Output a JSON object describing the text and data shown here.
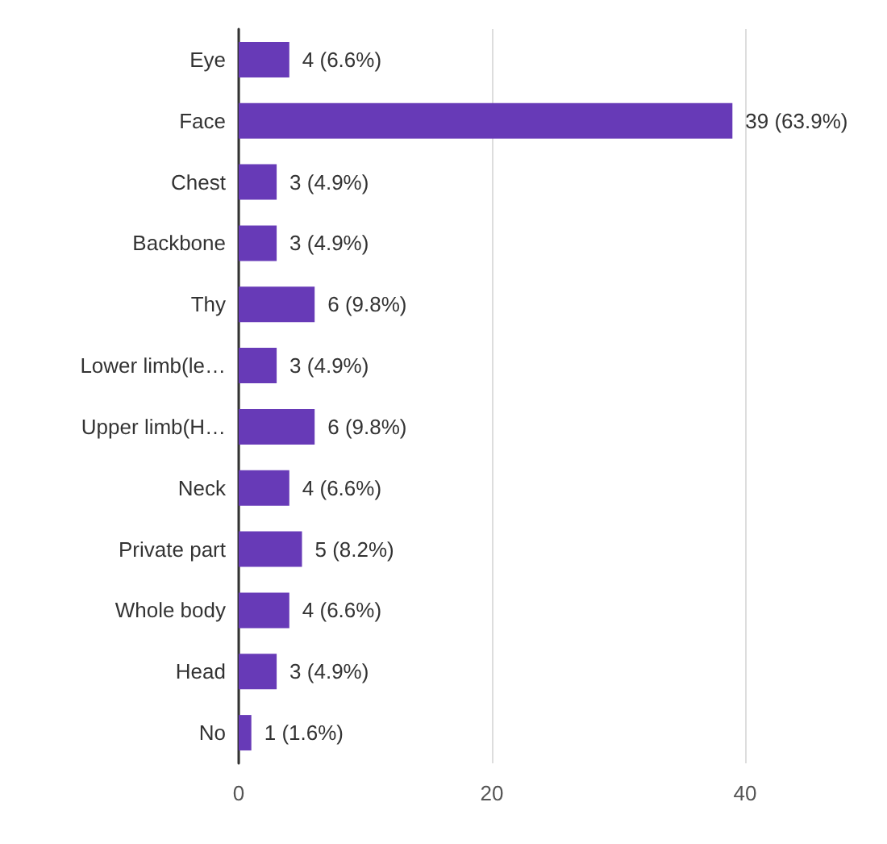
{
  "chart_data": {
    "type": "bar",
    "orientation": "horizontal",
    "categories": [
      "Eye",
      "Face",
      "Chest",
      "Backbone",
      "Thy",
      "Lower limb(le…",
      "Upper limb(H…",
      "Neck",
      "Private part",
      "Whole body",
      "Head",
      "No"
    ],
    "values": [
      4,
      39,
      3,
      3,
      6,
      3,
      6,
      4,
      5,
      4,
      3,
      1
    ],
    "value_labels": [
      "4 (6.6%)",
      "39 (63.9%)",
      "3 (4.9%)",
      "3 (4.9%)",
      "6 (9.8%)",
      "3 (4.9%)",
      "6 (9.8%)",
      "4 (6.6%)",
      "5 (8.2%)",
      "4 (6.6%)",
      "3 (4.9%)",
      "1 (1.6%)"
    ],
    "color": "#673ab7",
    "xlim": [
      0,
      40
    ],
    "xticks": [
      0,
      20,
      40
    ],
    "grid": "x"
  }
}
